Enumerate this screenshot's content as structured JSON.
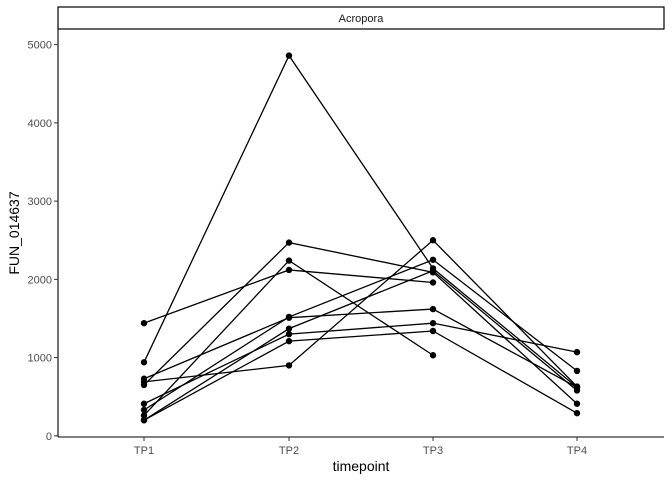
{
  "chart_data": {
    "type": "line",
    "facet_label": "Acropora",
    "xlabel": "timepoint",
    "ylabel": "FUN_014637",
    "categories": [
      "TP1",
      "TP2",
      "TP3",
      "TP4"
    ],
    "y_ticks": [
      0,
      1000,
      2000,
      3000,
      4000,
      5000
    ],
    "y_tick_labels": [
      "0",
      "1000",
      "2000",
      "3000",
      "4000",
      "5000"
    ],
    "ylim": [
      -15,
      5200
    ],
    "grid": false,
    "legend": "none",
    "line_color": "#000000",
    "series": [
      {
        "values": [
          1440,
          2120,
          1960,
          null
        ]
      },
      {
        "values": [
          940,
          4860,
          2140,
          620
        ]
      },
      {
        "values": [
          730,
          1510,
          1620,
          620
        ]
      },
      {
        "values": [
          690,
          900,
          2500,
          630
        ]
      },
      {
        "values": [
          650,
          2470,
          2090,
          410
        ]
      },
      {
        "values": [
          410,
          1300,
          1440,
          1070
        ]
      },
      {
        "values": [
          330,
          1520,
          2250,
          830
        ]
      },
      {
        "values": [
          260,
          2240,
          1030,
          null
        ]
      },
      {
        "values": [
          200,
          1370,
          2110,
          580
        ]
      },
      {
        "values": [
          200,
          1210,
          1340,
          290
        ]
      }
    ]
  }
}
